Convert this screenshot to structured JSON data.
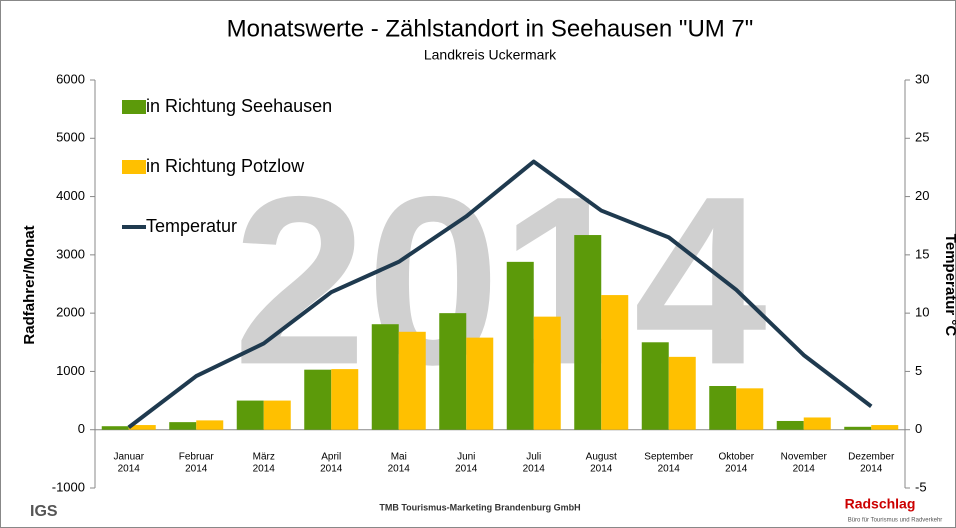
{
  "chart_data": {
    "type": "bar_line",
    "title": "Monatswerte - Zählstandort in Seehausen \"UM 7\"",
    "subtitle": "Landkreis Uckermark",
    "watermark": "2014",
    "y_label": "Radfahrer/Monat",
    "y2_label": "Temperatur °C",
    "categories": [
      "Januar 2014",
      "Februar 2014",
      "März 2014",
      "April 2014",
      "Mai 2014",
      "Juni 2014",
      "Juli 2014",
      "August 2014",
      "September 2014",
      "Oktober 2014",
      "November 2014",
      "Dezember 2014"
    ],
    "series": [
      {
        "name": "in Richtung Seehausen",
        "type": "bar",
        "color": "#5c9a0a",
        "values": [
          60,
          130,
          500,
          1030,
          1810,
          2000,
          2880,
          3340,
          1500,
          750,
          150,
          50
        ]
      },
      {
        "name": "in Richtung Potzlow",
        "type": "bar",
        "color": "#ffc000",
        "values": [
          80,
          160,
          500,
          1040,
          1680,
          1580,
          1940,
          2310,
          1250,
          710,
          210,
          80
        ]
      },
      {
        "name": "Temperatur",
        "type": "line",
        "axis": "y2",
        "color": "#1f3a4f",
        "values": [
          0.2,
          4.6,
          7.4,
          11.8,
          14.4,
          18.3,
          23.0,
          18.8,
          16.5,
          12.0,
          6.4,
          2.0
        ]
      }
    ],
    "ylim": [
      -1000,
      6000
    ],
    "yticks": [
      -1000,
      0,
      1000,
      2000,
      3000,
      4000,
      5000,
      6000
    ],
    "y2lim": [
      -5,
      30
    ],
    "y2ticks": [
      -5,
      0,
      5,
      10,
      15,
      20,
      25,
      30
    ],
    "legend": "top-left"
  },
  "footer": {
    "left_logo": "IGS",
    "center_logo": "TMB Tourismus-Marketing Brandenburg GmbH",
    "right_logo": "Radschlag",
    "right_logo_sub": "Büro für Tourismus und Radverkehr"
  }
}
